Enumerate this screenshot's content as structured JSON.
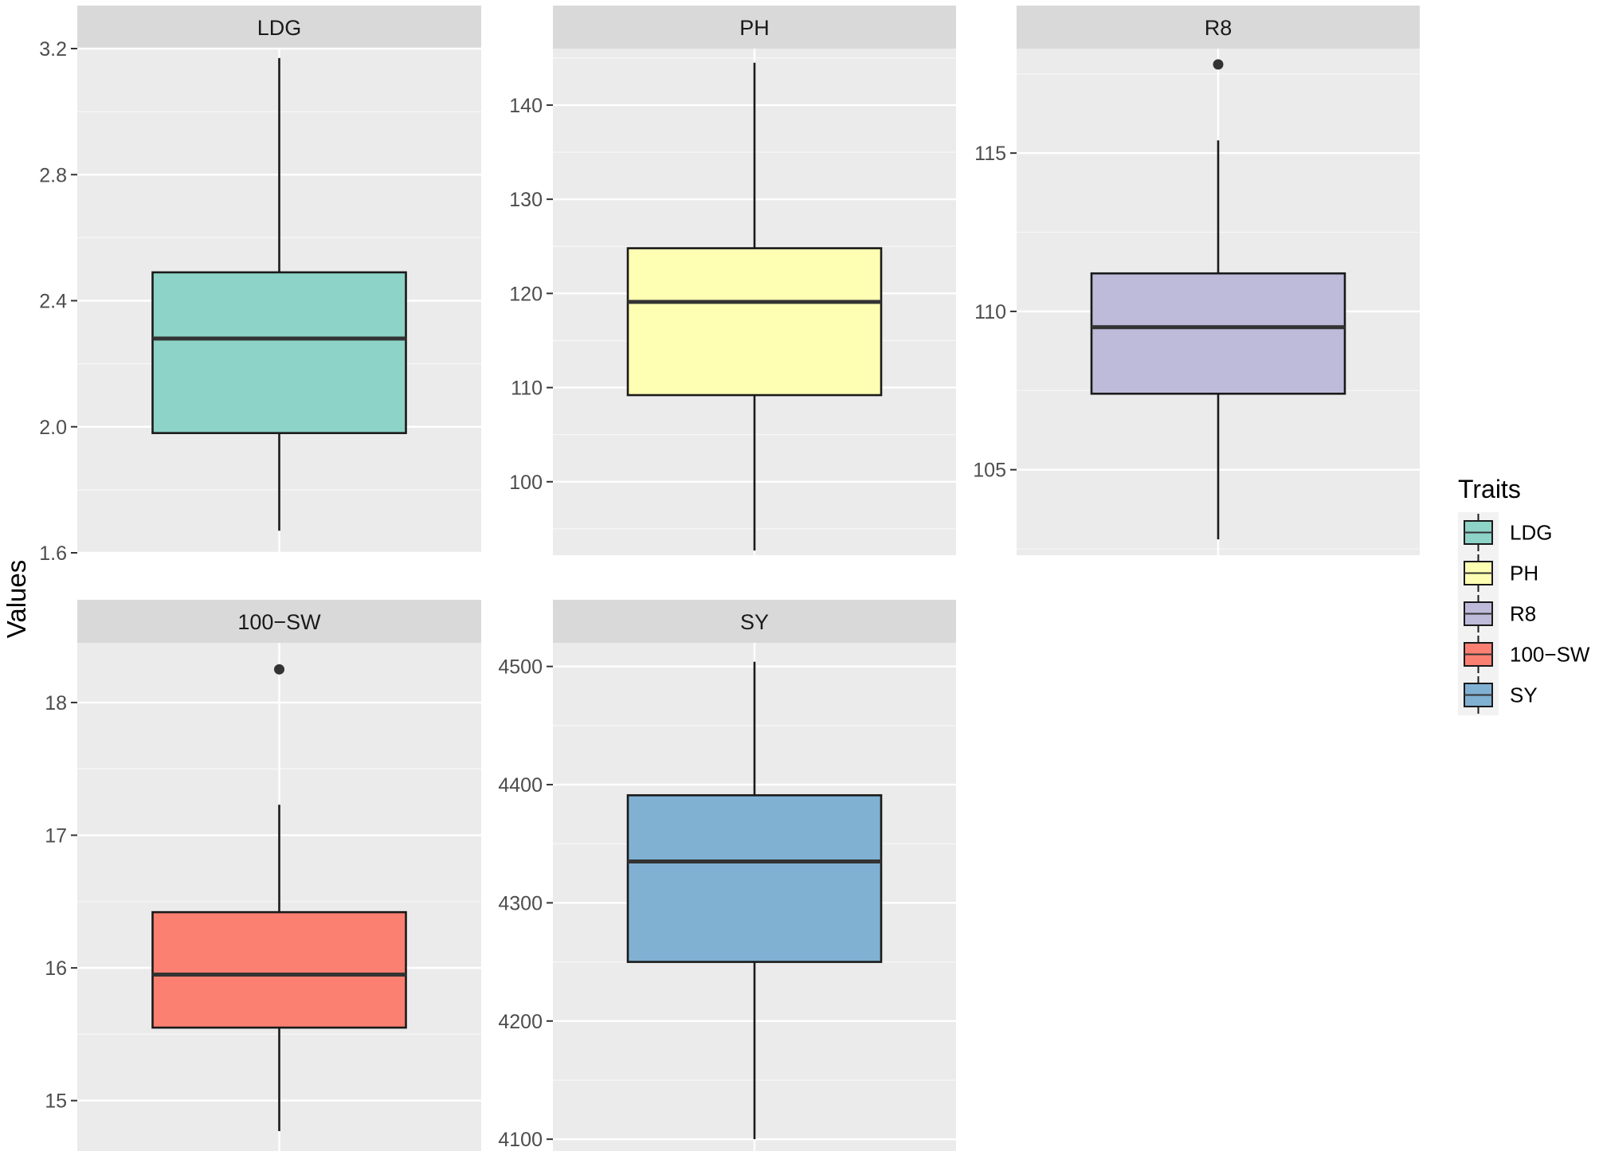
{
  "chart_data": {
    "type": "boxplot",
    "ylabel": "Values",
    "legend": {
      "title": "Traits",
      "position": "right",
      "items": [
        {
          "label": "LDG",
          "color": "#8DD3C7"
        },
        {
          "label": "PH",
          "color": "#FFFFB3"
        },
        {
          "label": "R8",
          "color": "#BEBADA"
        },
        {
          "label": "100−SW",
          "color": "#FB8072"
        },
        {
          "label": "SY",
          "color": "#80B1D3"
        }
      ]
    },
    "panels": [
      {
        "title": "LDG",
        "color": "#8DD3C7",
        "ylim": [
          1.6,
          3.2
        ],
        "yticks": [
          1.6,
          2.0,
          2.4,
          2.8,
          3.2
        ],
        "tick_labels": [
          "1.6",
          "2.0",
          "2.4",
          "2.8",
          "3.2"
        ],
        "whisker_low": 1.67,
        "q1": 1.98,
        "median": 2.28,
        "q3": 2.49,
        "whisker_high": 3.17,
        "outliers": []
      },
      {
        "title": "PH",
        "color": "#FFFFB3",
        "ylim": [
          92.2,
          146
        ],
        "yticks": [
          100,
          110,
          120,
          130,
          140
        ],
        "tick_labels": [
          "100",
          "110",
          "120",
          "130",
          "140"
        ],
        "whisker_low": 92.7,
        "q1": 109.2,
        "median": 119.1,
        "q3": 124.8,
        "whisker_high": 144.5,
        "outliers": []
      },
      {
        "title": "R8",
        "color": "#BEBADA",
        "ylim": [
          102.3,
          118.3
        ],
        "yticks": [
          105,
          110,
          115
        ],
        "tick_labels": [
          "105",
          "110",
          "115"
        ],
        "whisker_low": 102.8,
        "q1": 107.4,
        "median": 109.5,
        "q3": 111.2,
        "whisker_high": 115.4,
        "outliers": [
          117.8
        ]
      },
      {
        "title": "100−SW",
        "color": "#FB8072",
        "ylim": [
          14.62,
          18.45
        ],
        "yticks": [
          15,
          16,
          17,
          18
        ],
        "tick_labels": [
          "15",
          "16",
          "17",
          "18"
        ],
        "whisker_low": 14.77,
        "q1": 15.55,
        "median": 15.95,
        "q3": 16.42,
        "whisker_high": 17.23,
        "outliers": [
          18.25
        ]
      },
      {
        "title": "SY",
        "color": "#80B1D3",
        "ylim": [
          4090,
          4520
        ],
        "yticks": [
          4100,
          4200,
          4300,
          4400,
          4500
        ],
        "tick_labels": [
          "4100",
          "4200",
          "4300",
          "4400",
          "4500"
        ],
        "whisker_low": 4100,
        "q1": 4250,
        "median": 4335,
        "q3": 4391,
        "whisker_high": 4504,
        "outliers": []
      }
    ]
  }
}
